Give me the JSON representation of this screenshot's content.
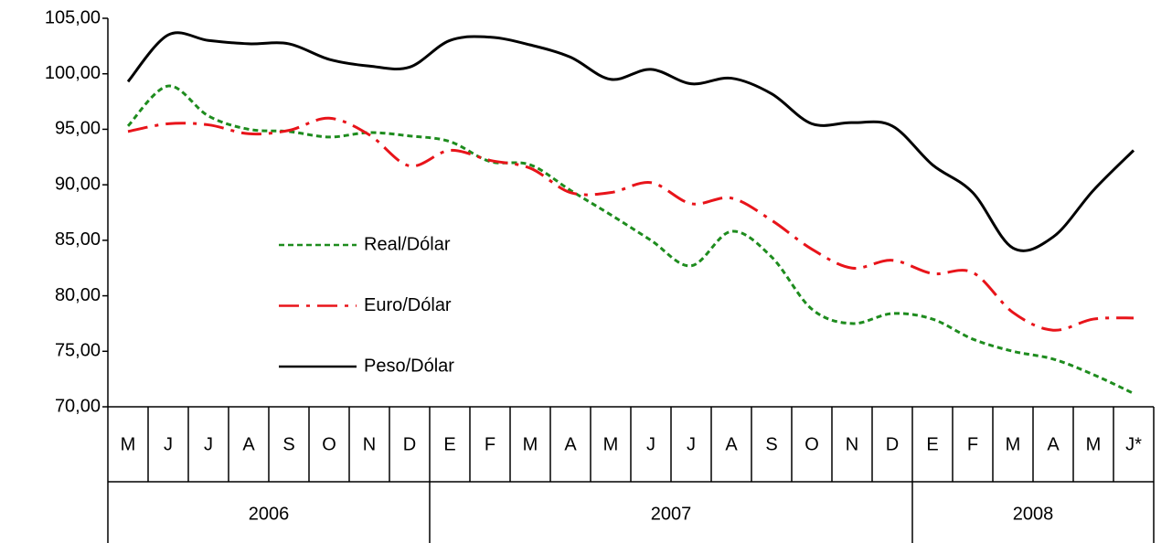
{
  "chart_data": {
    "type": "line",
    "groups": [
      {
        "label": "2006",
        "categories": [
          "M",
          "J",
          "J",
          "A",
          "S",
          "O",
          "N",
          "D"
        ]
      },
      {
        "label": "2007",
        "categories": [
          "E",
          "F",
          "M",
          "A",
          "M",
          "J",
          "J",
          "A",
          "S",
          "O",
          "N",
          "D"
        ]
      },
      {
        "label": "2008",
        "categories": [
          "E",
          "F",
          "M",
          "A",
          "M",
          "J*"
        ]
      }
    ],
    "series": [
      {
        "name": "Real/Dólar",
        "color": "#1e8c1e",
        "dash": "6,4",
        "values": [
          95.3,
          98.9,
          96.2,
          95.0,
          94.8,
          94.3,
          94.7,
          94.4,
          93.9,
          92.1,
          91.8,
          89.5,
          87.3,
          85.0,
          82.7,
          85.8,
          83.5,
          78.8,
          77.5,
          78.4,
          77.9,
          76.1,
          75.0,
          74.3,
          72.9,
          71.2
        ]
      },
      {
        "name": "Euro/Dólar",
        "color": "#e8141a",
        "dash": "22,8,4,8",
        "values": [
          94.8,
          95.5,
          95.4,
          94.6,
          94.9,
          96.0,
          94.5,
          91.7,
          93.1,
          92.2,
          91.5,
          89.3,
          89.3,
          90.2,
          88.3,
          88.8,
          86.8,
          84.2,
          82.5,
          83.2,
          82.0,
          82.1,
          78.5,
          76.9,
          77.9,
          78.0
        ]
      },
      {
        "name": "Peso/Dólar",
        "color": "#000000",
        "dash": "none",
        "values": [
          99.3,
          103.5,
          103.0,
          102.7,
          102.7,
          101.3,
          100.7,
          100.6,
          103.0,
          103.3,
          102.6,
          101.5,
          99.5,
          100.4,
          99.1,
          99.6,
          98.2,
          95.5,
          95.6,
          95.3,
          91.8,
          89.3,
          84.3,
          85.3,
          89.5,
          93.1
        ]
      }
    ],
    "ylim": [
      70,
      105
    ],
    "yticks": [
      {
        "value": 70,
        "label": "70,00"
      },
      {
        "value": 75,
        "label": "75,00"
      },
      {
        "value": 80,
        "label": "80,00"
      },
      {
        "value": 85,
        "label": "85,00"
      },
      {
        "value": 90,
        "label": "90,00"
      },
      {
        "value": 95,
        "label": "95,00"
      },
      {
        "value": 100,
        "label": "100,00"
      },
      {
        "value": 105,
        "label": "105,00"
      }
    ]
  }
}
